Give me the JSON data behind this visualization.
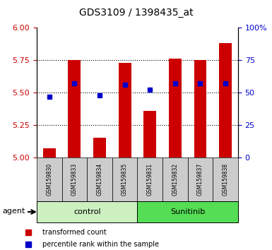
{
  "title": "GDS3109 / 1398435_at",
  "samples": [
    "GSM159830",
    "GSM159833",
    "GSM159834",
    "GSM159835",
    "GSM159831",
    "GSM159832",
    "GSM159837",
    "GSM159838"
  ],
  "bar_values": [
    5.07,
    5.75,
    5.15,
    5.73,
    5.36,
    5.76,
    5.75,
    5.88
  ],
  "percentile_values": [
    5.47,
    5.57,
    5.48,
    5.56,
    5.52,
    5.57,
    5.57,
    5.57
  ],
  "ylim_left": [
    5.0,
    6.0
  ],
  "ylim_right": [
    0,
    100
  ],
  "yticks_left": [
    5.0,
    5.25,
    5.5,
    5.75,
    6.0
  ],
  "yticks_right": [
    0,
    25,
    50,
    75,
    100
  ],
  "ytick_labels_right": [
    "0",
    "25",
    "50",
    "75",
    "100%"
  ],
  "bar_color": "#cc0000",
  "percentile_color": "#0000cc",
  "bar_bottom": 5.0,
  "groups": [
    {
      "label": "control",
      "indices": [
        0,
        1,
        2,
        3
      ],
      "color": "#ccf0c0"
    },
    {
      "label": "Sunitinib",
      "indices": [
        4,
        5,
        6,
        7
      ],
      "color": "#55dd55"
    }
  ],
  "agent_label": "agent",
  "legend_bar_label": "transformed count",
  "legend_pct_label": "percentile rank within the sample",
  "background_color": "#ffffff",
  "plot_bg": "#ffffff",
  "label_color_left": "#cc0000",
  "label_color_right": "#0000cc",
  "grid_yticks": [
    5.25,
    5.5,
    5.75
  ],
  "sample_box_color": "#cccccc"
}
